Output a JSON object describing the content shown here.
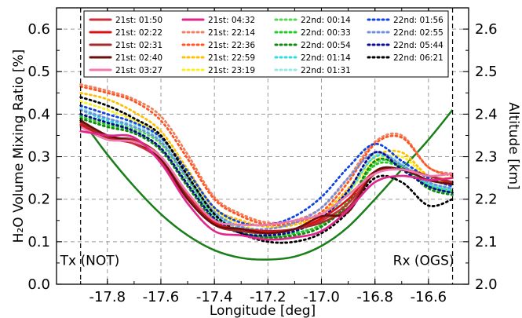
{
  "chart_data": {
    "type": "line",
    "xlabel": "Longitude [deg]",
    "ylabel_left": "H₂O Volume Mixing Ratio [%]",
    "ylabel_right": "Altitude [km]",
    "xlim": [
      -17.99,
      -16.45
    ],
    "ylim_left": [
      0.0,
      0.65
    ],
    "ylim_right": [
      2.0,
      2.65
    ],
    "x_ticks": [
      -17.8,
      -17.6,
      -17.4,
      -17.2,
      -17.0,
      -16.8,
      -16.6
    ],
    "x_tick_labels": [
      "-17.8",
      "-17.6",
      "-17.4",
      "-17.2",
      "-17.0",
      "-16.8",
      "-16.6"
    ],
    "y_ticks_left": [
      0.0,
      0.1,
      0.2,
      0.3,
      0.4,
      0.5,
      0.6
    ],
    "y_tick_labels_left": [
      "0.0",
      "0.1",
      "0.2",
      "0.3",
      "0.4",
      "0.5",
      "0.6"
    ],
    "y_ticks_right": [
      2.0,
      2.1,
      2.2,
      2.3,
      2.4,
      2.5,
      2.6
    ],
    "y_tick_labels_right": [
      "2.0",
      "2.1",
      "2.2",
      "2.3",
      "2.4",
      "2.5",
      "2.6"
    ],
    "grid": true,
    "legend_placement": "top",
    "annotations": [
      {
        "text": "Tx (NOT)",
        "x": -17.9
      },
      {
        "text": "Rx (OGS)",
        "x": -16.51
      }
    ],
    "vlines": [
      -17.9,
      -16.51
    ],
    "x": [
      -17.9,
      -17.8,
      -17.7,
      -17.6,
      -17.5,
      -17.4,
      -17.3,
      -17.2,
      -17.1,
      -17.0,
      -16.9,
      -16.8,
      -16.7,
      -16.6,
      -16.51
    ],
    "altitude": {
      "name": "Altitude",
      "color": "#1a7f1a",
      "values": [
        2.39,
        2.305,
        2.23,
        2.165,
        2.115,
        2.08,
        2.062,
        2.058,
        2.065,
        2.09,
        2.135,
        2.2,
        2.27,
        2.34,
        2.41
      ]
    },
    "series": [
      {
        "name": "21st: 01:50",
        "color": "#cc2e3a",
        "dash": "solid",
        "values": [
          0.385,
          0.345,
          0.33,
          0.29,
          0.2,
          0.14,
          0.13,
          0.125,
          0.13,
          0.15,
          0.19,
          0.26,
          0.27,
          0.255,
          0.24
        ]
      },
      {
        "name": "21st: 02:22",
        "color": "#dd1111",
        "dash": "solid",
        "values": [
          0.375,
          0.345,
          0.335,
          0.3,
          0.21,
          0.145,
          0.13,
          0.125,
          0.13,
          0.155,
          0.2,
          0.265,
          0.27,
          0.255,
          0.235
        ]
      },
      {
        "name": "21st: 02:31",
        "color": "#a52a2a",
        "dash": "solid",
        "values": [
          0.38,
          0.345,
          0.34,
          0.3,
          0.205,
          0.14,
          0.125,
          0.12,
          0.13,
          0.145,
          0.18,
          0.26,
          0.27,
          0.255,
          0.24
        ]
      },
      {
        "name": "21st: 02:40",
        "color": "#6b0d0d",
        "dash": "solid",
        "values": [
          0.385,
          0.35,
          0.335,
          0.295,
          0.2,
          0.14,
          0.13,
          0.12,
          0.13,
          0.16,
          0.17,
          0.265,
          0.27,
          0.245,
          0.235
        ]
      },
      {
        "name": "21st: 03:27",
        "color": "#f07ab0",
        "dash": "solid",
        "values": [
          0.37,
          0.34,
          0.335,
          0.3,
          0.215,
          0.15,
          0.14,
          0.14,
          0.15,
          0.165,
          0.21,
          0.26,
          0.27,
          0.255,
          0.26
        ]
      },
      {
        "name": "21st: 04:32",
        "color": "#e0258c",
        "dash": "solid",
        "values": [
          0.36,
          0.35,
          0.345,
          0.285,
          0.19,
          0.125,
          0.115,
          0.105,
          0.11,
          0.125,
          0.175,
          0.24,
          0.255,
          0.245,
          0.25
        ]
      },
      {
        "name": "21st: 22:14",
        "color": "#f08060",
        "dash": "dot",
        "values": [
          0.47,
          0.455,
          0.435,
          0.395,
          0.305,
          0.205,
          0.165,
          0.145,
          0.15,
          0.18,
          0.25,
          0.335,
          0.35,
          0.275,
          0.26
        ]
      },
      {
        "name": "21st: 22:36",
        "color": "#ff5522",
        "dash": "dot",
        "values": [
          0.465,
          0.45,
          0.43,
          0.385,
          0.295,
          0.2,
          0.16,
          0.14,
          0.145,
          0.17,
          0.24,
          0.33,
          0.345,
          0.275,
          0.255
        ]
      },
      {
        "name": "21st: 22:59",
        "color": "#ffc000",
        "dash": "dot",
        "values": [
          0.45,
          0.435,
          0.405,
          0.36,
          0.27,
          0.18,
          0.15,
          0.135,
          0.14,
          0.165,
          0.225,
          0.3,
          0.31,
          0.255,
          0.25
        ]
      },
      {
        "name": "21st: 23:19",
        "color": "#ffee22",
        "dash": "dot",
        "values": [
          0.43,
          0.41,
          0.385,
          0.345,
          0.26,
          0.175,
          0.14,
          0.125,
          0.13,
          0.155,
          0.215,
          0.29,
          0.3,
          0.25,
          0.24
        ]
      },
      {
        "name": "22nd: 00:14",
        "color": "#55d655",
        "dash": "dot",
        "values": [
          0.4,
          0.38,
          0.365,
          0.33,
          0.245,
          0.16,
          0.125,
          0.115,
          0.12,
          0.14,
          0.19,
          0.285,
          0.28,
          0.235,
          0.22
        ]
      },
      {
        "name": "22nd: 00:33",
        "color": "#22cc22",
        "dash": "dot",
        "values": [
          0.395,
          0.375,
          0.36,
          0.32,
          0.235,
          0.155,
          0.12,
          0.11,
          0.12,
          0.14,
          0.195,
          0.28,
          0.275,
          0.23,
          0.215
        ]
      },
      {
        "name": "22nd: 00:54",
        "color": "#118811",
        "dash": "dot",
        "values": [
          0.39,
          0.37,
          0.355,
          0.315,
          0.23,
          0.15,
          0.12,
          0.11,
          0.115,
          0.135,
          0.19,
          0.29,
          0.275,
          0.225,
          0.21
        ]
      },
      {
        "name": "22nd: 01:14",
        "color": "#33dddd",
        "dash": "dot",
        "values": [
          0.41,
          0.385,
          0.37,
          0.335,
          0.25,
          0.165,
          0.13,
          0.125,
          0.13,
          0.15,
          0.215,
          0.3,
          0.28,
          0.235,
          0.22
        ]
      },
      {
        "name": "22nd: 01:31",
        "color": "#99e6e6",
        "dash": "dot",
        "values": [
          0.415,
          0.39,
          0.375,
          0.34,
          0.255,
          0.17,
          0.135,
          0.125,
          0.13,
          0.155,
          0.22,
          0.305,
          0.285,
          0.24,
          0.225
        ]
      },
      {
        "name": "22nd: 01:56",
        "color": "#1144dd",
        "dash": "dot",
        "values": [
          0.42,
          0.4,
          0.38,
          0.345,
          0.265,
          0.18,
          0.145,
          0.14,
          0.16,
          0.205,
          0.275,
          0.33,
          0.29,
          0.25,
          0.23
        ]
      },
      {
        "name": "22nd: 02:55",
        "color": "#6f8fdf",
        "dash": "dot",
        "values": [
          0.41,
          0.39,
          0.37,
          0.335,
          0.25,
          0.17,
          0.135,
          0.13,
          0.145,
          0.18,
          0.25,
          0.31,
          0.28,
          0.24,
          0.225
        ]
      },
      {
        "name": "22nd: 05:44",
        "color": "#0a0a99",
        "dash": "dot",
        "values": [
          0.4,
          0.38,
          0.36,
          0.32,
          0.235,
          0.155,
          0.12,
          0.115,
          0.125,
          0.155,
          0.22,
          0.31,
          0.27,
          0.23,
          0.215
        ]
      },
      {
        "name": "22nd: 06:21",
        "color": "#000000",
        "dash": "dot",
        "values": [
          0.44,
          0.42,
          0.39,
          0.35,
          0.255,
          0.165,
          0.12,
          0.1,
          0.1,
          0.12,
          0.17,
          0.25,
          0.24,
          0.185,
          0.2
        ]
      }
    ]
  }
}
